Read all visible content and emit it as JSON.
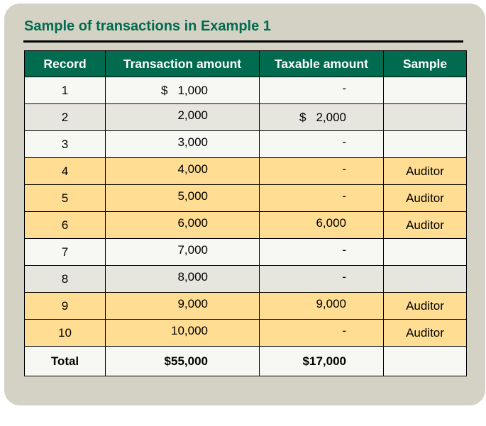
{
  "title": "Sample of transactions in Example 1",
  "columns": [
    "Record",
    "Transaction amount",
    "Taxable amount",
    "Sample"
  ],
  "rows": [
    {
      "record": "1",
      "currency": "$",
      "transaction": "1,000",
      "taxable_currency": "",
      "taxable": "-",
      "sample": "",
      "style": "w"
    },
    {
      "record": "2",
      "currency": "",
      "transaction": "2,000",
      "taxable_currency": "$",
      "taxable": "2,000",
      "sample": "",
      "style": "g"
    },
    {
      "record": "3",
      "currency": "",
      "transaction": "3,000",
      "taxable_currency": "",
      "taxable": "-",
      "sample": "",
      "style": "w"
    },
    {
      "record": "4",
      "currency": "",
      "transaction": "4,000",
      "taxable_currency": "",
      "taxable": "-",
      "sample": "Auditor",
      "style": "y"
    },
    {
      "record": "5",
      "currency": "",
      "transaction": "5,000",
      "taxable_currency": "",
      "taxable": "-",
      "sample": "Auditor",
      "style": "y"
    },
    {
      "record": "6",
      "currency": "",
      "transaction": "6,000",
      "taxable_currency": "",
      "taxable": "6,000",
      "sample": "Auditor",
      "style": "y"
    },
    {
      "record": "7",
      "currency": "",
      "transaction": "7,000",
      "taxable_currency": "",
      "taxable": "-",
      "sample": "",
      "style": "w"
    },
    {
      "record": "8",
      "currency": "",
      "transaction": "8,000",
      "taxable_currency": "",
      "taxable": "-",
      "sample": "",
      "style": "g"
    },
    {
      "record": "9",
      "currency": "",
      "transaction": "9,000",
      "taxable_currency": "",
      "taxable": "9,000",
      "sample": "Auditor",
      "style": "y"
    },
    {
      "record": "10",
      "currency": "",
      "transaction": "10,000",
      "taxable_currency": "",
      "taxable": "-",
      "sample": "Auditor",
      "style": "y"
    }
  ],
  "total": {
    "label": "Total",
    "transaction": "$55,000",
    "taxable": "$17,000",
    "sample": ""
  },
  "colors": {
    "header": "#006b4f",
    "sampled_row": "#ffdd93",
    "alt_row": "#e6e5de",
    "panel": "#d4d2c4"
  }
}
